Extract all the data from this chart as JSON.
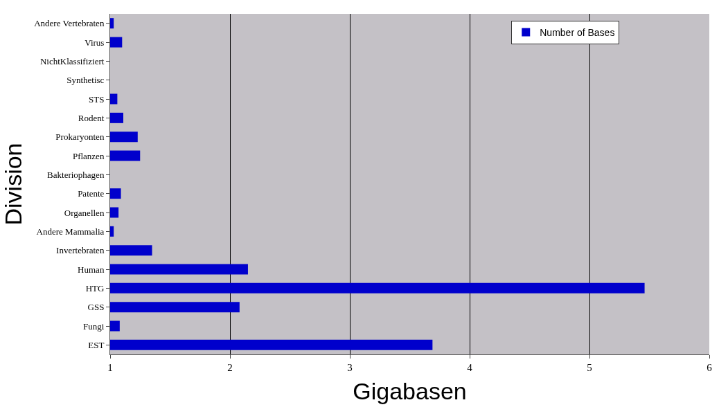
{
  "chart_data": {
    "type": "bar",
    "orientation": "horizontal",
    "xlabel": "Gigabasen",
    "ylabel": "Division",
    "categories": [
      "Andere Vertebraten",
      "Virus",
      "NichtKlassifiziert",
      "Synthetisc",
      "STS",
      "Rodent",
      "Prokaryonten",
      "Pflanzen",
      "Bakteriophagen",
      "Patente",
      "Organellen",
      "Andere Mammalia",
      "Invertebraten",
      "Human",
      "HTG",
      "GSS",
      "Fungi",
      "EST"
    ],
    "series": [
      {
        "name": "Number of Bases",
        "color": "#0000cc",
        "values": [
          1.03,
          1.1,
          1,
          1,
          1.06,
          1.11,
          1.23,
          1.25,
          1,
          1.09,
          1.07,
          1.03,
          1.35,
          2.15,
          5.46,
          2.08,
          1.08,
          3.69
        ]
      }
    ],
    "xlim": [
      1,
      6
    ],
    "xticks": [
      1,
      2,
      3,
      4,
      5,
      6
    ],
    "grid": "x",
    "legend": "top right"
  }
}
